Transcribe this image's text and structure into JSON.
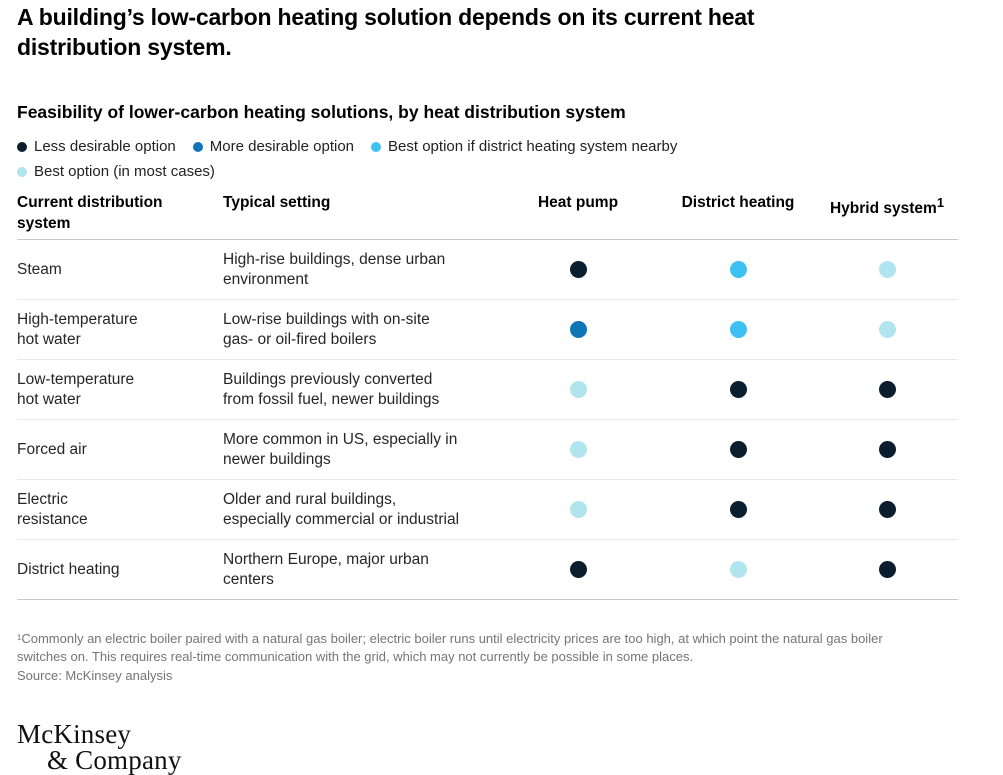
{
  "page_title": "A building’s low-carbon heating solution depends on its current heat\ndistribution system.",
  "chart_data": {
    "type": "table",
    "title": "Feasibility of lower-carbon heating solutions, by heat distribution system",
    "legend": {
      "colors": {
        "less_desirable": "#0a1e2d",
        "more_desirable": "#0e76b5",
        "best_if_district": "#3dc0f2",
        "best": "#b0e4ee"
      },
      "items": [
        {
          "key": "less_desirable",
          "label": "Less desirable option"
        },
        {
          "key": "more_desirable",
          "label": "More desirable option"
        },
        {
          "key": "best_if_district",
          "label": "Best option if district heating system nearby"
        },
        {
          "key": "best",
          "label": "Best option (in most cases)"
        }
      ]
    },
    "columns": {
      "system": "Current distribution\nsystem",
      "setting": "Typical setting",
      "heat_pump": "Heat pump",
      "district_heating": "District heating",
      "hybrid": "Hybrid system",
      "hybrid_sup": "1"
    },
    "rows": [
      {
        "system": "Steam",
        "setting": "High-rise buildings, dense urban\nenvironment",
        "ratings": [
          "less_desirable",
          "best_if_district",
          "best"
        ]
      },
      {
        "system": "High-temperature\nhot water",
        "setting": "Low-rise buildings with on-site\ngas- or oil-fired boilers",
        "ratings": [
          "more_desirable",
          "best_if_district",
          "best"
        ]
      },
      {
        "system": "Low-temperature\nhot water",
        "setting": "Buildings previously converted\nfrom fossil fuel, newer buildings",
        "ratings": [
          "best",
          "less_desirable",
          "less_desirable"
        ]
      },
      {
        "system": "Forced air",
        "setting": "More common in US, especially in\nnewer buildings",
        "ratings": [
          "best",
          "less_desirable",
          "less_desirable"
        ]
      },
      {
        "system": "Electric\nresistance",
        "setting": "Older and rural buildings,\nespecially commercial or industrial",
        "ratings": [
          "best",
          "less_desirable",
          "less_desirable"
        ]
      },
      {
        "system": "District heating",
        "setting": "Northern Europe, major urban\ncenters",
        "ratings": [
          "less_desirable",
          "best",
          "less_desirable"
        ]
      }
    ]
  },
  "footnotes": {
    "note": "¹Commonly an electric boiler paired with a natural gas boiler; electric boiler runs until electricity prices are too high, at which point the natural gas boiler\nswitches on. This requires real-time communication with the grid, which may not currently be possible in some places.",
    "source": "Source: McKinsey analysis"
  },
  "logo": {
    "line1": "McKinsey",
    "line2": "& Company"
  }
}
